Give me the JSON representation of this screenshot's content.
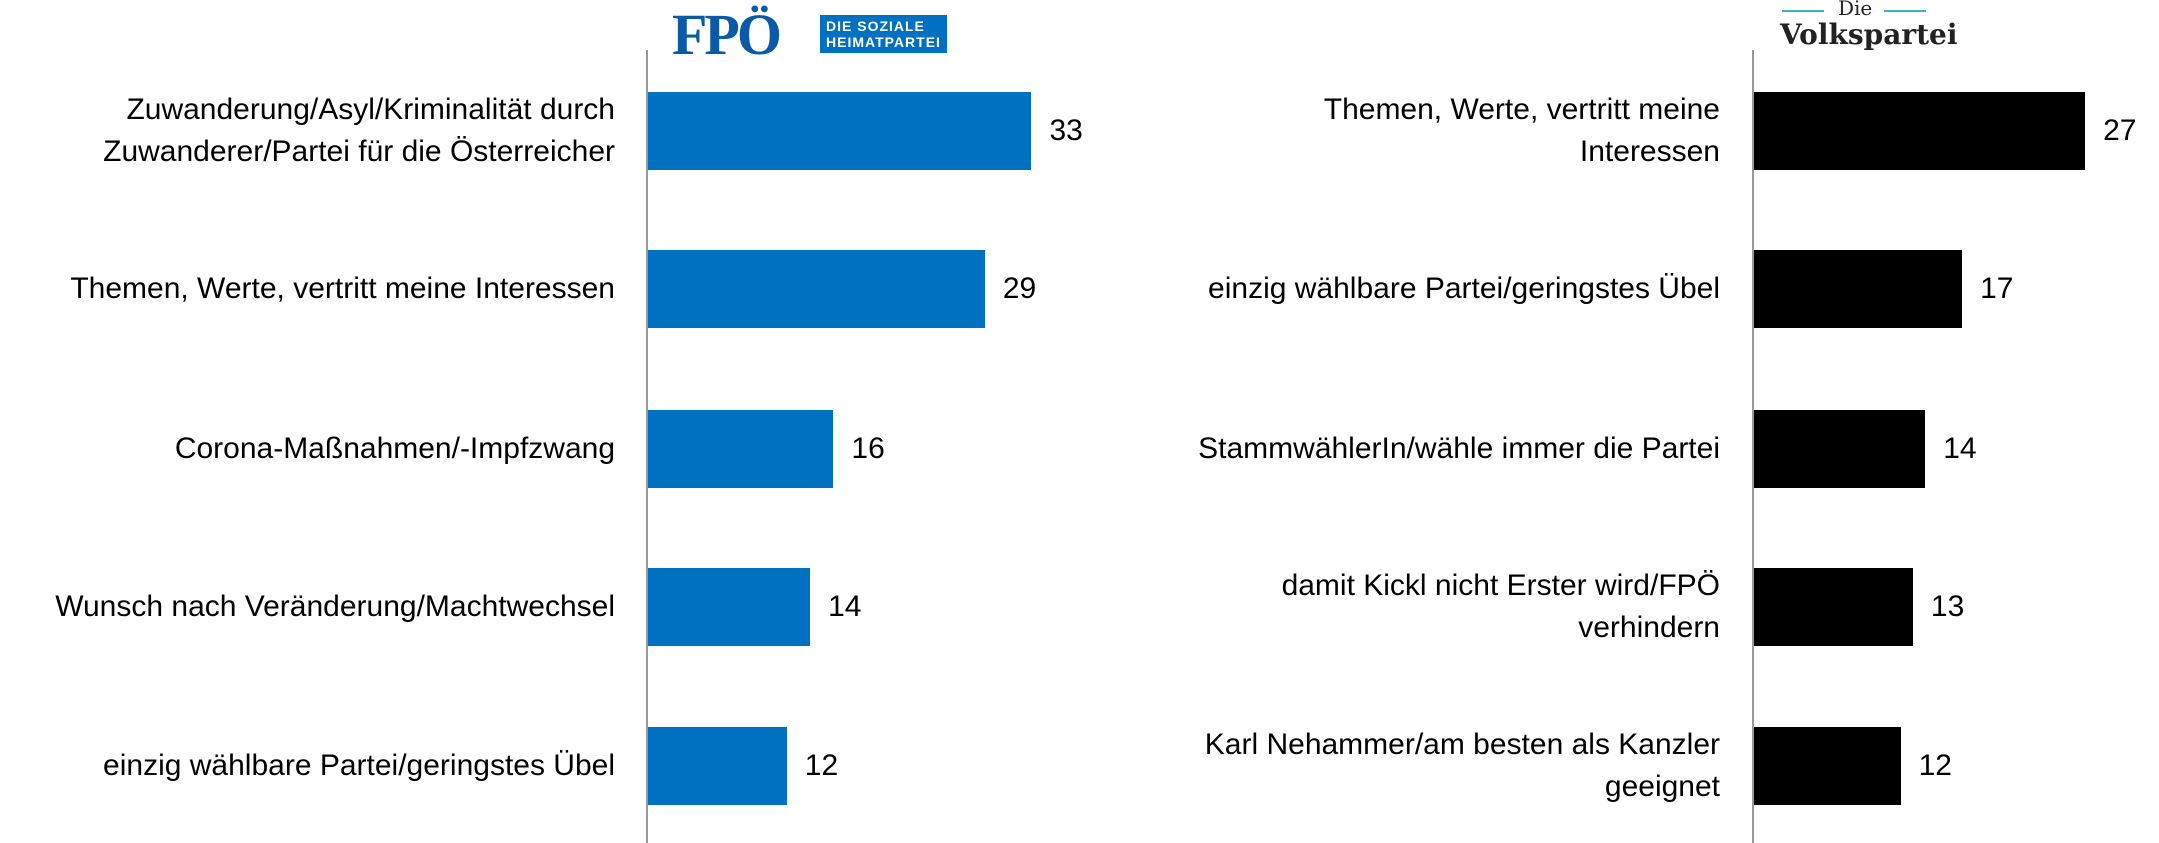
{
  "chart_data": [
    {
      "type": "bar",
      "orientation": "horizontal",
      "color": "#0070c0",
      "logo": {
        "text": "FPÖ",
        "tagline": "DIE SOZIALE\nHEIMATPARTEI"
      },
      "categories": [
        "Zuwanderung/Asyl/Kriminalität durch\nZuwanderer/Partei für die Österreicher",
        "Themen, Werte, vertritt meine Interessen",
        "Corona-Maßnahmen/-Impfzwang",
        "Wunsch nach Veränderung/Machtwechsel",
        "einzig wählbare Partei/geringstes Übel"
      ],
      "values": [
        33,
        29,
        16,
        14,
        12
      ],
      "xlim": [
        0,
        40
      ]
    },
    {
      "type": "bar",
      "orientation": "horizontal",
      "color": "#000000",
      "logo": {
        "text": "Volkspartei",
        "tagline": "Die"
      },
      "categories": [
        "Themen, Werte, vertritt meine\nInteressen",
        "einzig wählbare Partei/geringstes Übel",
        "StammwählerIn/wähle immer die Partei",
        "damit Kickl nicht Erster wird/FPÖ\nverhindern",
        "Karl Nehammer/am besten als Kanzler\ngeeignet"
      ],
      "values": [
        27,
        17,
        14,
        13,
        12
      ],
      "xlim": [
        0,
        40
      ]
    }
  ]
}
